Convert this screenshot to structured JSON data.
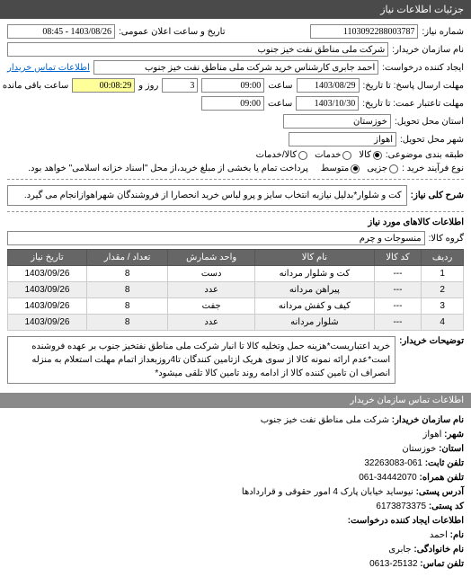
{
  "header": {
    "title": "جزئیات اطلاعات نیاز"
  },
  "form": {
    "req_no_label": "شماره نیاز:",
    "req_no": "1103092288003787",
    "pub_date_label": "تاریخ و ساعت اعلان عمومی:",
    "pub_date": "1403/08/26 - 08:45",
    "buyer_name_label": "نام سازمان خریدار:",
    "buyer_name": "شرکت ملی مناطق نفت خیز جنوب",
    "requester_label": "ایجاد کننده درخواست:",
    "requester": "احمد جابری کارشناس خرید شرکت ملی مناطق نفت خیز جنوب",
    "buyer_contact_link": "اطلاعات تماس خریدار",
    "deadline_label": "مهلت ارسال پاسخ: تا تاریخ:",
    "deadline_date": "1403/08/29",
    "time_label": "ساعت",
    "deadline_time": "09:00",
    "day_label": "روز و",
    "days": "3",
    "remain_label": "ساعت باقی مانده",
    "remain_time": "00:08:29",
    "validity_label": "مهلت تاعتبار عمت: تا تاریخ:",
    "validity_date": "1403/10/30",
    "validity_time": "09:00",
    "province_label": "استان محل تحویل:",
    "province": "خوزستان",
    "city_label": "شهر محل تحویل:",
    "city": "اهواز",
    "class_label": "طبقه بندی موضوعی:",
    "class_kala": "کالا",
    "class_khadamat": "خدمات",
    "class_both": "کالا/خدمات",
    "buy_type_label": "نوع فرآیند خرید :",
    "buy_low": "جزیی",
    "buy_mid": "متوسط",
    "buy_note": "پرداخت تمام یا بخشی از مبلغ خرید،از محل \"اسناد خزانه اسلامی\" خواهد بود.",
    "subject_label": "شرح کلی نیاز:",
    "subject": "کت و شلوار*بدلیل نیازبه انتخاب سایز و پرو لباس خرید انحصارا از فروشندگان شهراهوازانجام می گیرد."
  },
  "goods_section": "اطلاعات کالاهای مورد نیاز",
  "group_label": "گروه کالا:",
  "group_value": "منسوجات و چرم",
  "table": {
    "headers": [
      "ردیف",
      "کد کالا",
      "نام کالا",
      "واحد شمارش",
      "تعداد / مقدار",
      "تاریخ نیاز"
    ],
    "rows": [
      [
        "1",
        "---",
        "کت و شلوار مردانه",
        "دست",
        "8",
        "1403/09/26"
      ],
      [
        "2",
        "---",
        "پیراهن مردانه",
        "عدد",
        "8",
        "1403/09/26"
      ],
      [
        "3",
        "---",
        "کیف و کفش مردانه",
        "جفت",
        "8",
        "1403/09/26"
      ],
      [
        "4",
        "---",
        "شلوار مردانه",
        "عدد",
        "8",
        "1403/09/26"
      ]
    ]
  },
  "buyer_notes_label": "توضیحات خریدار:",
  "buyer_notes": "خرید اعتباریست*هزینه حمل وتخلیه کالا تا انبار شرکت ملی مناطق نفتخیز جنوب بر عهده فروشنده است*عدم ارائه نمونه کالا از سوی هریک ازتامین کنندگان تا4روزبعداز اتمام مهلت استعلام به منزله انصراف ان تامین کننده کالا  از ادامه روند تامین کالا تلقی میشود*",
  "contact_section": "اطلاعات تماس سازمان خریدار",
  "footer": {
    "org_label": "نام سازمان خریدار:",
    "org": "شرکت ملی مناطق نفت خیز جنوب",
    "city_label": "شهر:",
    "city": "اهواز",
    "province_label": "استان:",
    "province": "خوزستان",
    "phone_label": "تلفن ثابت:",
    "phone": "061-32263083",
    "fax_label": "تلفن همراه:",
    "fax": "34442070-061",
    "addr_label": "آدرس پستی:",
    "addr": "نیوساید خیابان پارک 4 امور حقوقی و قراردادها",
    "zip_label": "کد پستی:",
    "zip": "6173873375",
    "creator_section": "اطلاعات ایجاد کننده درخواست:",
    "name_label": "نام:",
    "name": "احمد",
    "family_label": "نام خانوادگی:",
    "family": "جابری",
    "tel_label": "تلفن تماس:",
    "tel": "25132-0613"
  }
}
